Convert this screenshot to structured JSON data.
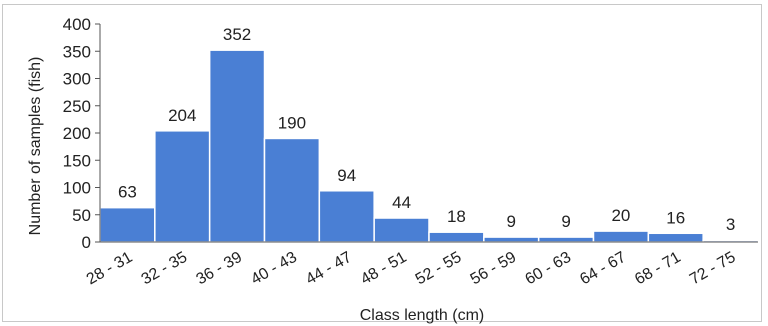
{
  "chart_data": {
    "type": "bar",
    "categories": [
      "28 - 31",
      "32 - 35",
      "36 - 39",
      "40 - 43",
      "44 - 47",
      "48 - 51",
      "52 - 55",
      "56 - 59",
      "60 - 63",
      "64 - 67",
      "68 - 71",
      "72 - 75"
    ],
    "values": [
      63,
      204,
      352,
      190,
      94,
      44,
      18,
      9,
      9,
      20,
      16,
      3
    ],
    "title": "",
    "xlabel": "Class length (cm)",
    "ylabel": "Number of samples (fish)",
    "ylim": [
      0,
      400
    ],
    "yticks": [
      0,
      50,
      100,
      150,
      200,
      250,
      300,
      350,
      400
    ],
    "grid": false,
    "legend": "none",
    "bar_color": "#4a7fd4",
    "bar_edge_color": "#ffffff"
  }
}
